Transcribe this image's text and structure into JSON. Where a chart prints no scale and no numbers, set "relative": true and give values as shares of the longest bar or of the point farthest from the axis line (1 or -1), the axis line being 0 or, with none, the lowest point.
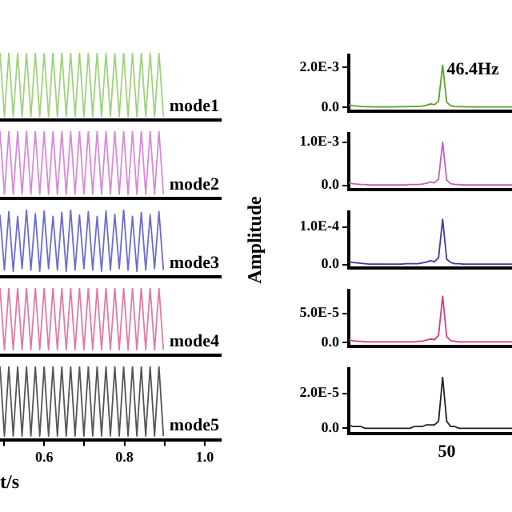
{
  "chart_data": [
    {
      "type": "line",
      "relative": true,
      "marker": "none",
      "tick_labels": false,
      "xlim": [
        0.49,
        1.04
      ],
      "annotations": [
        "mode1"
      ],
      "x": [
        0.49,
        0.501,
        0.512,
        0.523,
        0.534,
        0.545,
        0.556,
        0.567,
        0.578,
        0.589,
        0.6,
        0.611,
        0.622,
        0.633,
        0.644,
        0.655,
        0.666,
        0.677,
        0.688,
        0.699,
        0.71,
        0.721,
        0.732,
        0.743,
        0.754,
        0.765,
        0.776,
        0.787,
        0.798,
        0.809,
        0.82,
        0.831,
        0.842,
        0.853,
        0.864,
        0.875,
        0.886,
        0.897
      ],
      "series": [
        {
          "color": "#9fd27c",
          "values": [
            1,
            0.05,
            1,
            0.05,
            1,
            0.05,
            1,
            0.05,
            1,
            0.05,
            1,
            0.05,
            1,
            0.05,
            1,
            0.05,
            1,
            0.05,
            1,
            0.05,
            1,
            0.05,
            1,
            0.05,
            1,
            0.05,
            1,
            0.05,
            1,
            0.05,
            1,
            0.05,
            1,
            0.05,
            1,
            0.05,
            1,
            0.05
          ]
        }
      ]
    },
    {
      "type": "line",
      "relative": true,
      "marker": "none",
      "tick_labels": false,
      "xlim": [
        0.49,
        1.04
      ],
      "annotations": [
        "mode2"
      ],
      "x": [
        0.49,
        0.501,
        0.512,
        0.523,
        0.534,
        0.545,
        0.556,
        0.567,
        0.578,
        0.589,
        0.6,
        0.611,
        0.622,
        0.633,
        0.644,
        0.655,
        0.666,
        0.677,
        0.688,
        0.699,
        0.71,
        0.721,
        0.732,
        0.743,
        0.754,
        0.765,
        0.776,
        0.787,
        0.798,
        0.809,
        0.82,
        0.831,
        0.842,
        0.853,
        0.864,
        0.875,
        0.886,
        0.897
      ],
      "series": [
        {
          "color": "#d88ad8",
          "values": [
            1,
            0.06,
            1,
            0.06,
            1,
            0.06,
            1,
            0.06,
            1,
            0.06,
            1,
            0.06,
            1,
            0.06,
            1,
            0.06,
            1,
            0.06,
            1,
            0.06,
            1,
            0.06,
            1,
            0.06,
            1,
            0.06,
            1,
            0.06,
            1,
            0.06,
            1,
            0.06,
            1,
            0.06,
            1,
            0.06,
            1,
            0.06
          ]
        }
      ]
    },
    {
      "type": "line",
      "relative": true,
      "marker": "none",
      "tick_labels": false,
      "xlim": [
        0.49,
        1.04
      ],
      "annotations": [
        "mode3"
      ],
      "x": [
        0.49,
        0.501,
        0.512,
        0.523,
        0.534,
        0.545,
        0.556,
        0.567,
        0.578,
        0.589,
        0.6,
        0.611,
        0.622,
        0.633,
        0.644,
        0.655,
        0.666,
        0.677,
        0.688,
        0.699,
        0.71,
        0.721,
        0.732,
        0.743,
        0.754,
        0.765,
        0.776,
        0.787,
        0.798,
        0.809,
        0.82,
        0.831,
        0.842,
        0.853,
        0.864,
        0.875,
        0.886,
        0.897
      ],
      "series": [
        {
          "color": "#6c6cd0",
          "values": [
            0.92,
            0.1,
            0.97,
            0.08,
            0.9,
            0.12,
            1,
            0.1,
            0.94,
            0.08,
            0.98,
            0.12,
            0.9,
            0.1,
            0.96,
            0.08,
            1,
            0.1,
            0.92,
            0.12,
            0.97,
            0.1,
            0.9,
            0.08,
            0.98,
            0.1,
            0.93,
            0.12,
            1,
            0.1,
            0.9,
            0.08,
            0.96,
            0.1,
            0.92,
            0.12,
            0.97,
            0.1
          ]
        }
      ]
    },
    {
      "type": "line",
      "relative": true,
      "marker": "none",
      "tick_labels": false,
      "xlim": [
        0.49,
        1.04
      ],
      "annotations": [
        "mode4"
      ],
      "x": [
        0.49,
        0.501,
        0.512,
        0.523,
        0.534,
        0.545,
        0.556,
        0.567,
        0.578,
        0.589,
        0.6,
        0.611,
        0.622,
        0.633,
        0.644,
        0.655,
        0.666,
        0.677,
        0.688,
        0.699,
        0.71,
        0.721,
        0.732,
        0.743,
        0.754,
        0.765,
        0.776,
        0.787,
        0.798,
        0.809,
        0.82,
        0.831,
        0.842,
        0.853,
        0.864,
        0.875,
        0.886,
        0.897
      ],
      "series": [
        {
          "color": "#e07aa8",
          "values": [
            1,
            0.08,
            1,
            0.08,
            1,
            0.08,
            1,
            0.08,
            1,
            0.08,
            1,
            0.08,
            1,
            0.08,
            1,
            0.08,
            1,
            0.08,
            1,
            0.08,
            1,
            0.08,
            1,
            0.08,
            1,
            0.08,
            1,
            0.08,
            1,
            0.08,
            1,
            0.08,
            1,
            0.08,
            1,
            0.08,
            1,
            0.08
          ]
        }
      ]
    },
    {
      "type": "line",
      "relative": true,
      "marker": "none",
      "tick_labels": "x",
      "xlim": [
        0.49,
        1.04
      ],
      "xticks": [
        {
          "value": 0.5,
          "label": null
        },
        0.6,
        {
          "value": 0.7,
          "label": null
        },
        0.8,
        {
          "value": 0.9,
          "label": null
        },
        {
          "value": 1,
          "label": "1.0"
        }
      ],
      "xlabel": "t/s",
      "annotations": [
        "mode5"
      ],
      "x": [
        0.49,
        0.501,
        0.512,
        0.523,
        0.534,
        0.545,
        0.556,
        0.567,
        0.578,
        0.589,
        0.6,
        0.611,
        0.622,
        0.633,
        0.644,
        0.655,
        0.666,
        0.677,
        0.688,
        0.699,
        0.71,
        0.721,
        0.732,
        0.743,
        0.754,
        0.765,
        0.776,
        0.787,
        0.798,
        0.809,
        0.82,
        0.831,
        0.842,
        0.853,
        0.864,
        0.875,
        0.886,
        0.897
      ],
      "series": [
        {
          "color": "#555555",
          "values": [
            1,
            0.05,
            1,
            0.05,
            1,
            0.05,
            1,
            0.05,
            1,
            0.05,
            1,
            0.05,
            1,
            0.05,
            1,
            0.05,
            1,
            0.05,
            1,
            0.05,
            1,
            0.05,
            1,
            0.05,
            1,
            0.05,
            1,
            0.05,
            1,
            0.05,
            1,
            0.05,
            1,
            0.05,
            1,
            0.05,
            1,
            0.05
          ]
        }
      ]
    },
    {
      "type": "line",
      "marker": "none",
      "tick_labels": "y",
      "ylim": [
        -0.0002,
        0.0026
      ],
      "yticks": [
        {
          "value": 0,
          "label": "0.0"
        },
        {
          "value": 0.002,
          "label": "2.0E-3"
        }
      ],
      "annotations": [
        "46.4Hz"
      ],
      "categories": [
        null,
        null,
        null,
        null,
        null,
        null,
        null,
        null,
        null,
        null,
        null,
        null,
        null,
        null,
        null,
        null,
        null,
        null,
        null,
        null,
        null,
        null,
        null,
        null,
        null,
        null,
        null,
        null,
        null,
        null,
        null,
        null,
        null,
        null,
        null,
        null,
        null,
        null,
        null,
        null,
        null
      ],
      "series": [
        {
          "color": "#5aa02c",
          "values": [
            0.00013,
            8e-05,
            6e-05,
            4e-05,
            3e-05,
            3e-05,
            2e-05,
            2e-05,
            2e-05,
            2e-05,
            2e-05,
            2e-05,
            3e-05,
            3e-05,
            3e-05,
            4e-05,
            4e-05,
            4e-05,
            6e-05,
            0.0001,
            0.00017,
            0.00013,
            0.0003,
            0.0021,
            0.00025,
            8e-05,
            4e-05,
            3e-05,
            3e-05,
            2e-05,
            2e-05,
            2e-05,
            2e-05,
            2e-05,
            2e-05,
            2e-05,
            2e-05,
            2e-05,
            2e-05,
            2e-05,
            2e-05
          ]
        }
      ]
    },
    {
      "type": "line",
      "marker": "none",
      "tick_labels": "y",
      "ylim": [
        -0.0001,
        0.0012
      ],
      "yticks": [
        {
          "value": 0,
          "label": "0.0"
        },
        {
          "value": 0.001,
          "label": "1.0E-3"
        }
      ],
      "categories": [
        null,
        null,
        null,
        null,
        null,
        null,
        null,
        null,
        null,
        null,
        null,
        null,
        null,
        null,
        null,
        null,
        null,
        null,
        null,
        null,
        null,
        null,
        null,
        null,
        null,
        null,
        null,
        null,
        null,
        null,
        null,
        null,
        null,
        null,
        null,
        null,
        null,
        null,
        null,
        null,
        null
      ],
      "series": [
        {
          "color": "#c060c0",
          "values": [
            6e-05,
            4e-05,
            3e-05,
            2e-05,
            2e-05,
            1e-05,
            1e-05,
            1e-05,
            1e-05,
            1e-05,
            1e-05,
            1e-05,
            1e-05,
            1e-05,
            1e-05,
            2e-05,
            2e-05,
            2e-05,
            3e-05,
            5e-05,
            8e-05,
            6e-05,
            0.00015,
            0.001,
            0.00012,
            4e-05,
            2e-05,
            2e-05,
            1e-05,
            1e-05,
            1e-05,
            1e-05,
            1e-05,
            1e-05,
            1e-05,
            1e-05,
            1e-05,
            1e-05,
            1e-05,
            1e-05,
            1e-05
          ]
        }
      ]
    },
    {
      "type": "line",
      "marker": "none",
      "tick_labels": "y",
      "ylim": [
        -1e-05,
        0.00014
      ],
      "yticks": [
        {
          "value": 0,
          "label": "0.0"
        },
        {
          "value": 0.0001,
          "label": "1.0E-4"
        }
      ],
      "ylabel": "Amplitude",
      "categories": [
        null,
        null,
        null,
        null,
        null,
        null,
        null,
        null,
        null,
        null,
        null,
        null,
        null,
        null,
        null,
        null,
        null,
        null,
        null,
        null,
        null,
        null,
        null,
        null,
        null,
        null,
        null,
        null,
        null,
        null,
        null,
        null,
        null,
        null,
        null,
        null,
        null,
        null,
        null,
        null,
        null
      ],
      "series": [
        {
          "color": "#3a3aa8",
          "values": [
            7e-06,
            5e-06,
            4e-06,
            3e-06,
            2e-06,
            1e-06,
            1e-06,
            1e-06,
            1e-06,
            1e-06,
            1e-06,
            1e-06,
            1e-06,
            1e-06,
            2e-06,
            2e-06,
            2e-06,
            2e-06,
            4e-06,
            6e-06,
            1e-05,
            7e-06,
            1.8e-05,
            0.00012,
            1.4e-05,
            5e-06,
            2e-06,
            2e-06,
            1e-06,
            1e-06,
            1e-06,
            1e-06,
            1e-06,
            1e-06,
            1e-06,
            1e-06,
            1e-06,
            1e-06,
            1e-06,
            1e-06,
            1e-06
          ]
        }
      ]
    },
    {
      "type": "line",
      "marker": "none",
      "tick_labels": "y",
      "ylim": [
        -7e-06,
        9e-05
      ],
      "yticks": [
        {
          "value": 0,
          "label": "0.0"
        },
        {
          "value": 5e-05,
          "label": "5.0E-5"
        }
      ],
      "categories": [
        null,
        null,
        null,
        null,
        null,
        null,
        null,
        null,
        null,
        null,
        null,
        null,
        null,
        null,
        null,
        null,
        null,
        null,
        null,
        null,
        null,
        null,
        null,
        null,
        null,
        null,
        null,
        null,
        null,
        null,
        null,
        null,
        null,
        null,
        null,
        null,
        null,
        null,
        null,
        null,
        null
      ],
      "series": [
        {
          "color": "#d04080",
          "values": [
            5e-06,
            3e-06,
            2e-06,
            2e-06,
            1e-06,
            1e-06,
            1e-06,
            1e-06,
            1e-06,
            1e-06,
            1e-06,
            1e-06,
            1e-06,
            1e-06,
            1e-06,
            1e-06,
            1e-06,
            2e-06,
            2e-06,
            4e-06,
            6e-06,
            5e-06,
            1.2e-05,
            8e-05,
            1e-05,
            3e-06,
            2e-06,
            1e-06,
            1e-06,
            1e-06,
            1e-06,
            1e-06,
            1e-06,
            1e-06,
            1e-06,
            1e-06,
            1e-06,
            1e-06,
            1e-06,
            1e-06,
            1e-06
          ]
        }
      ]
    },
    {
      "type": "line",
      "marker": "none",
      "tick_labels": "y",
      "ylim": [
        -3e-06,
        3.4e-05
      ],
      "yticks": [
        {
          "value": 0,
          "label": "0.0"
        },
        {
          "value": 2e-05,
          "label": "2.0E-5"
        }
      ],
      "annotations": [
        "50"
      ],
      "categories": [
        null,
        null,
        null,
        null,
        null,
        null,
        null,
        null,
        null,
        null,
        null,
        null,
        null,
        null,
        null,
        null,
        null,
        null,
        null,
        null,
        null,
        null,
        null,
        null,
        null,
        null,
        null,
        null,
        null,
        null,
        null,
        null,
        null,
        null,
        null,
        null,
        null,
        null,
        null,
        null,
        null
      ],
      "series": [
        {
          "color": "#202020",
          "values": [
            2e-06,
            1e-06,
            1e-06,
            1e-06,
            0,
            0,
            0,
            0,
            0,
            0,
            0,
            0,
            0,
            0,
            0,
            0,
            1e-06,
            1e-06,
            1e-06,
            2e-06,
            2e-06,
            2e-06,
            4e-06,
            2.9e-05,
            4e-06,
            1e-06,
            1e-06,
            0,
            0,
            0,
            0,
            0,
            0,
            0,
            0,
            0,
            0,
            0,
            0,
            0,
            0
          ]
        }
      ]
    }
  ]
}
